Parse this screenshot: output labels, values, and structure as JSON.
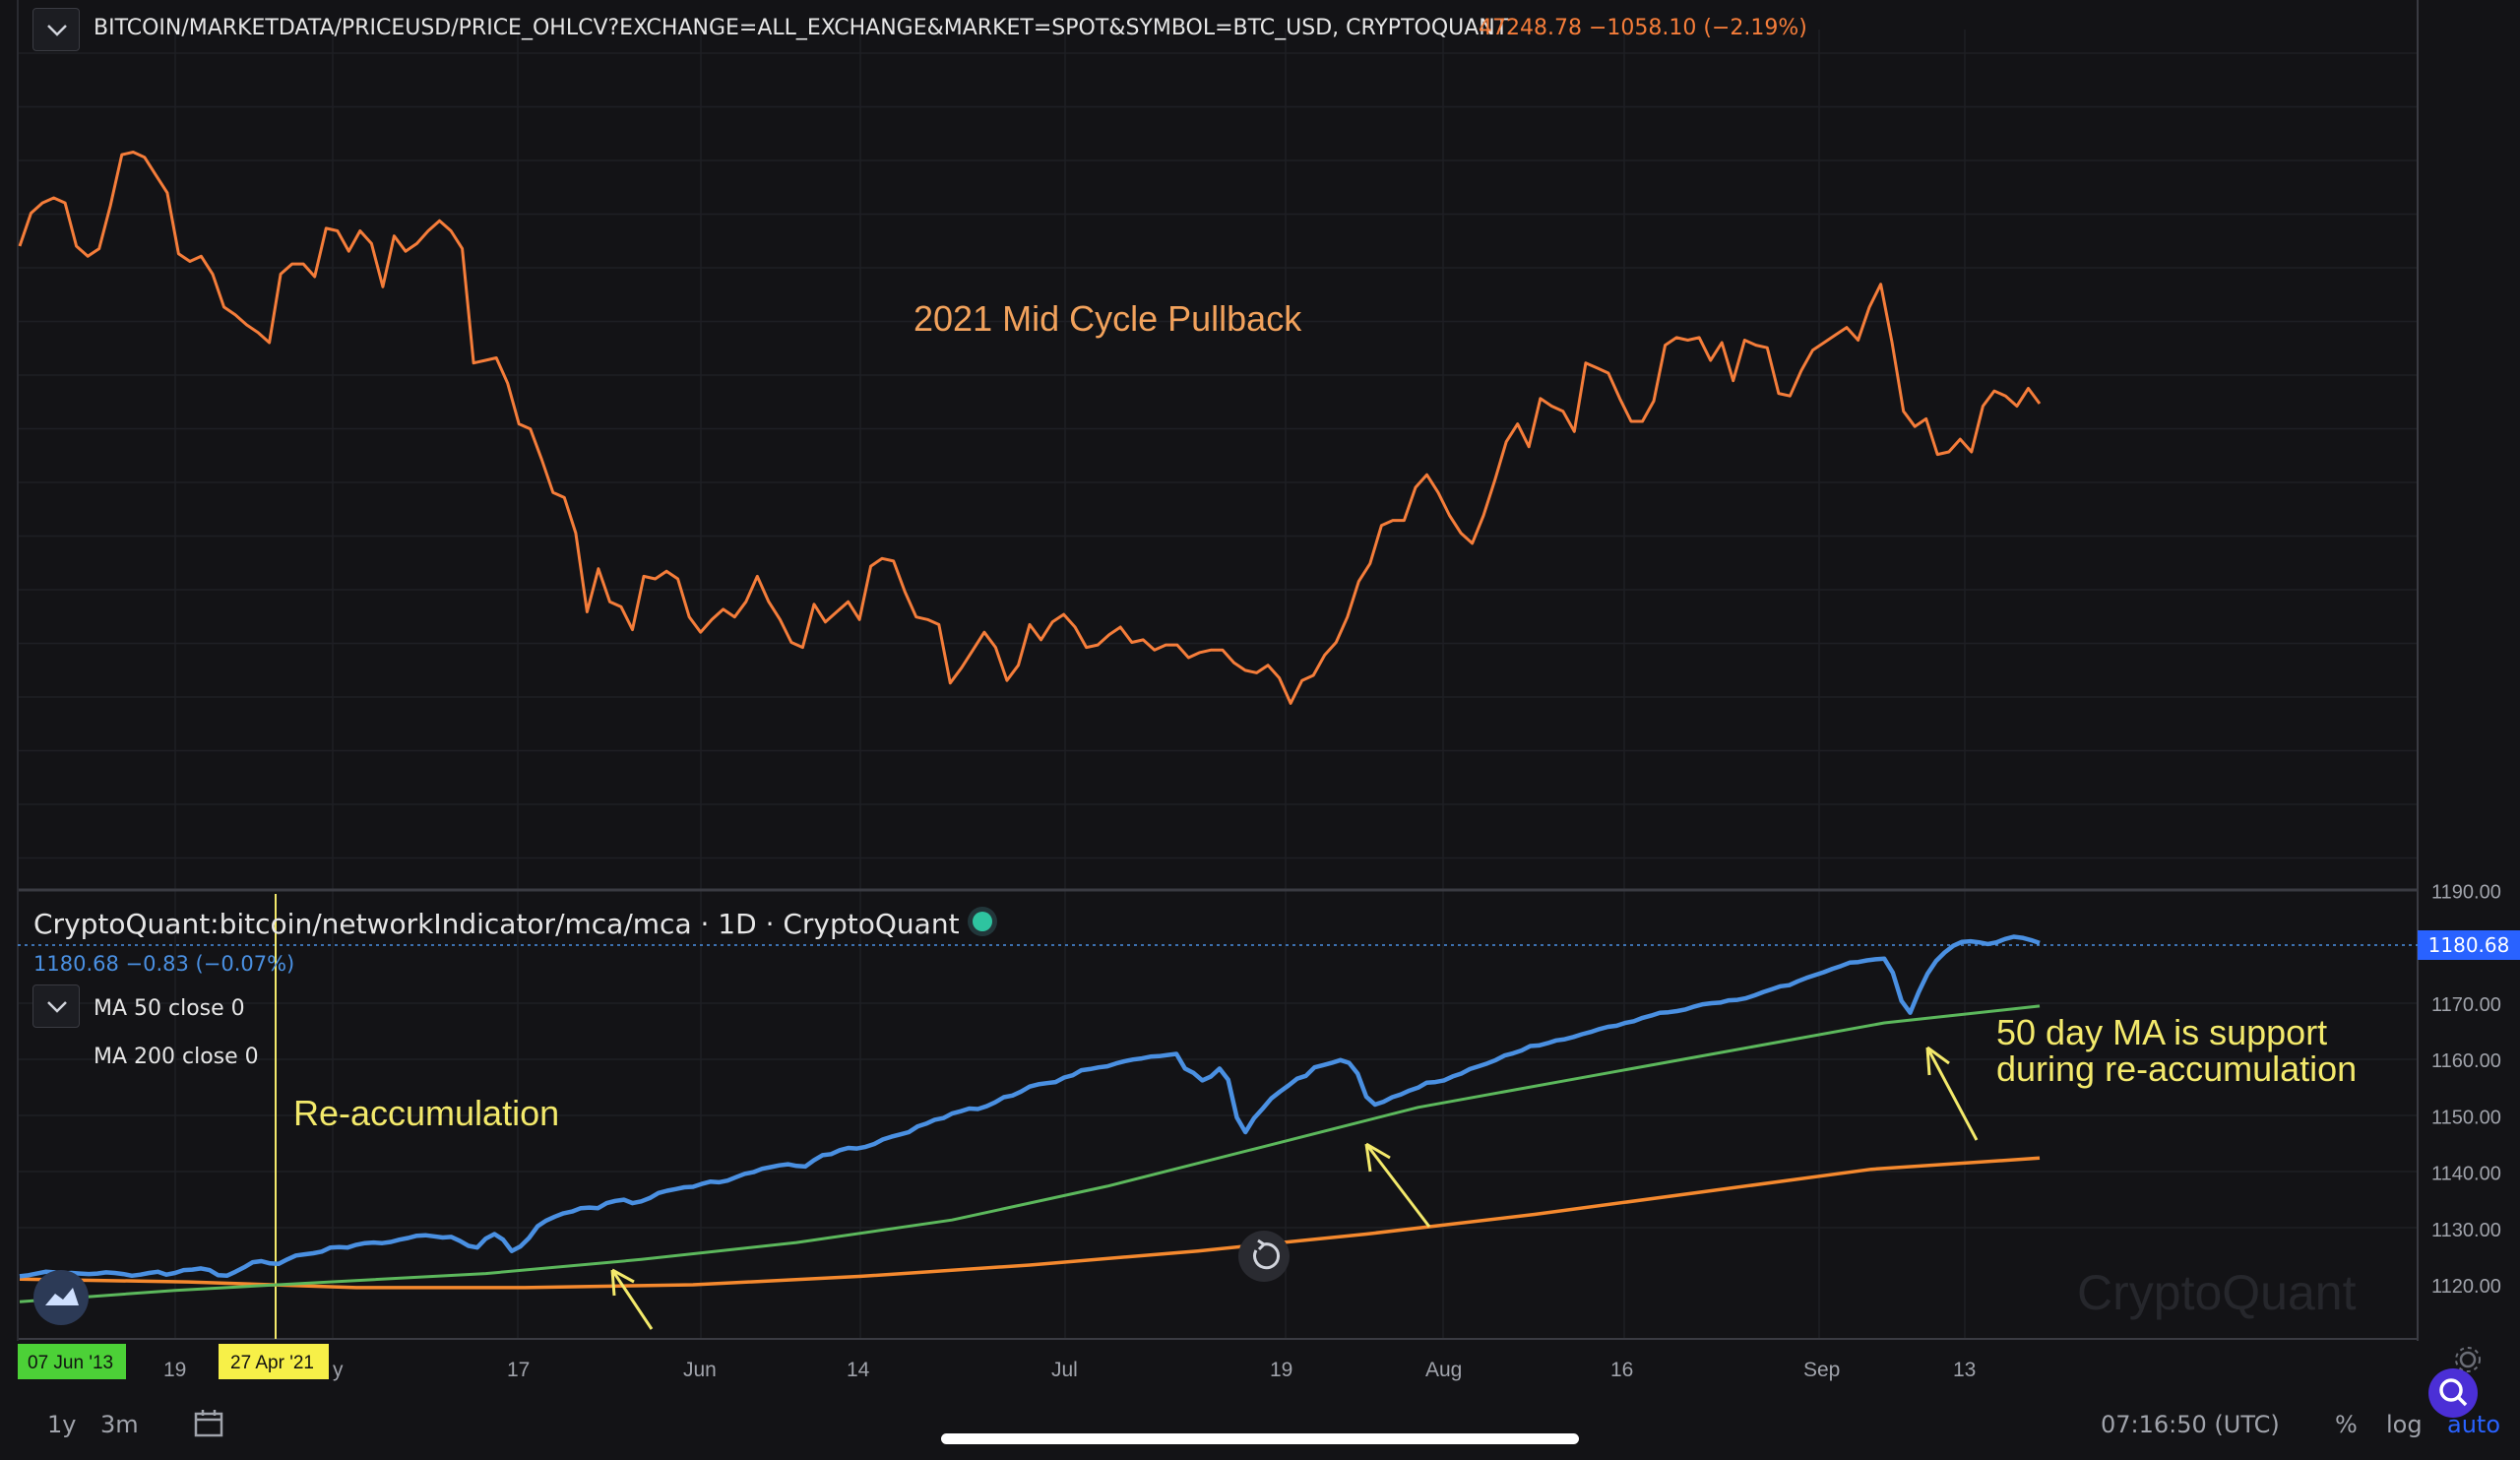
{
  "header": {
    "title": "BITCOIN/MARKETDATA/PRICEUSD/PRICE_OHLCV?EXCHANGE=ALL_EXCHANGE&MARKET=SPOT&SYMBOL=BTC_USD, CRYPTOQUANT",
    "price_text": "47248.78 −1058.10 (−2.19%)"
  },
  "indicator_pane": {
    "title": "CryptoQuant:bitcoin/networkIndicator/mca/mca · 1D · CryptoQuant",
    "value_text": "1180.68 −0.83 (−0.07%)",
    "ma50_label": "MA 50 close 0",
    "ma200_label": "MA 200 close 0",
    "last_value_badge": "1180.68",
    "watermark": "CryptoQuant"
  },
  "bottom_bar": {
    "range_1y": "1y",
    "range_3m": "3m",
    "clock": "07:16:50 (UTC)",
    "percent": "%",
    "log": "log",
    "auto": "auto"
  },
  "colors": {
    "price_line": "#f57d3a",
    "mca_line": "#4a90e2",
    "ma50_line": "#5cb85c",
    "ma200_line": "#f5892e",
    "annotation": "#f3e96b",
    "accent_blue": "#2962ff"
  },
  "chart_data": [
    {
      "type": "line",
      "title": "",
      "annotations": [
        "2021 Mid Cycle Pullback"
      ],
      "series": [
        {
          "name": "",
          "values": [
            61.0,
            62.3,
            62.7,
            62.9,
            62.7,
            61.0,
            60.6,
            60.9,
            62.6,
            64.6,
            64.7,
            64.5,
            63.8,
            63.1,
            60.7,
            60.4,
            60.6,
            59.9,
            58.6,
            58.3,
            57.9,
            57.6,
            57.2,
            59.9,
            60.3,
            60.3,
            59.8,
            61.7,
            61.6,
            60.8,
            61.6,
            61.1,
            59.4,
            61.4,
            60.8,
            61.1,
            61.6,
            62.0,
            61.6,
            60.9,
            56.4,
            56.5,
            56.6,
            55.6,
            54.0,
            53.8,
            52.6,
            51.3,
            51.1,
            49.7,
            46.6,
            48.3,
            47.0,
            46.8,
            45.9,
            48.0,
            47.9,
            48.2,
            47.9,
            46.4,
            45.8,
            46.3,
            46.7,
            46.4,
            47.0,
            48.0,
            47.0,
            46.3,
            45.4,
            45.2,
            46.9,
            46.2,
            46.6,
            47.0,
            46.3,
            48.4,
            48.7,
            48.6,
            47.4,
            46.4,
            46.3,
            46.1,
            43.8,
            44.4,
            45.1,
            45.8,
            45.2,
            43.9,
            44.5,
            46.1,
            45.5,
            46.2,
            46.5,
            46.0,
            45.2,
            45.3,
            45.7,
            46.0,
            45.4,
            45.5,
            45.1,
            45.3,
            45.3,
            44.8,
            45.0,
            45.1,
            45.1,
            44.6,
            44.3,
            44.2,
            44.5,
            44.0,
            43.0,
            43.9,
            44.1,
            44.9,
            45.4,
            46.4,
            47.8,
            48.5,
            50.0,
            50.2,
            50.2,
            51.5,
            52.0,
            51.3,
            50.4,
            49.7,
            49.3,
            50.4,
            51.8,
            53.3,
            54.0,
            53.1,
            55.0,
            54.7,
            54.5,
            53.7,
            56.4,
            56.2,
            56.0,
            55.0,
            54.1,
            54.1,
            54.9,
            57.1,
            57.4,
            57.3,
            57.4,
            56.5,
            57.2,
            55.7,
            57.3,
            57.1,
            57.0,
            55.2,
            55.1,
            56.1,
            56.9,
            57.2,
            57.5,
            57.8,
            57.3,
            58.6,
            59.5,
            57.2,
            54.5,
            53.9,
            54.2,
            52.8,
            52.9,
            53.4,
            52.9,
            54.7,
            55.3,
            55.1,
            54.7,
            55.4,
            54.8
          ]
        }
      ],
      "x_tick_labels": [
        "y",
        "17",
        "Jun",
        "14",
        "Jul",
        "19",
        "Aug",
        "16",
        "Sep",
        "13"
      ],
      "grid": true
    },
    {
      "type": "line",
      "title": "",
      "y_tick_labels": [
        "1190.00",
        "1180.68",
        "1170.00",
        "1160.00",
        "1150.00",
        "1140.00",
        "1130.00",
        "1120.00"
      ],
      "ylim": [
        1110,
        1190
      ],
      "vertical_marker": {
        "label": "27 Apr '21"
      },
      "left_marker": {
        "label": "07 Jun '13"
      },
      "x_tick_labels": [
        "19",
        "y",
        "17",
        "Jun",
        "14",
        "Jul",
        "19",
        "Aug",
        "16",
        "Sep",
        "13"
      ],
      "annotations": [
        "Re-accumulation",
        "50 day MA is support",
        "during re-accumulation"
      ],
      "series": [
        {
          "name": "MCA",
          "values": [
            1121.5,
            1121.7,
            1122.0,
            1122.3,
            1122.2,
            1122.0,
            1122.1,
            1122.0,
            1121.9,
            1122.0,
            1122.2,
            1122.1,
            1121.9,
            1121.6,
            1121.8,
            1122.1,
            1122.3,
            1121.8,
            1122.1,
            1122.6,
            1122.7,
            1122.9,
            1122.6,
            1121.7,
            1121.6,
            1122.3,
            1123.1,
            1124.0,
            1124.2,
            1123.8,
            1123.7,
            1124.5,
            1125.2,
            1125.4,
            1125.6,
            1125.9,
            1126.6,
            1126.7,
            1126.6,
            1127.1,
            1127.4,
            1127.5,
            1127.4,
            1127.6,
            1128.0,
            1128.3,
            1128.7,
            1128.8,
            1128.6,
            1128.4,
            1128.5,
            1127.8,
            1126.9,
            1126.6,
            1128.2,
            1129.0,
            1128.0,
            1126.0,
            1126.8,
            1128.3,
            1130.4,
            1131.4,
            1132.1,
            1132.7,
            1133.0,
            1133.6,
            1133.7,
            1133.6,
            1134.5,
            1134.9,
            1135.1,
            1134.5,
            1134.8,
            1135.4,
            1136.3,
            1136.7,
            1137.0,
            1137.3,
            1137.4,
            1137.9,
            1138.3,
            1138.2,
            1138.5,
            1139.1,
            1139.7,
            1140.0,
            1140.6,
            1140.9,
            1141.2,
            1141.4,
            1141.1,
            1141.0,
            1142.1,
            1143.0,
            1143.2,
            1143.9,
            1144.3,
            1144.2,
            1144.5,
            1145.0,
            1145.8,
            1146.3,
            1146.7,
            1147.1,
            1148.1,
            1148.6,
            1149.3,
            1149.6,
            1150.4,
            1150.8,
            1151.3,
            1151.2,
            1151.7,
            1152.4,
            1153.3,
            1153.6,
            1154.3,
            1155.2,
            1155.6,
            1155.8,
            1156.0,
            1156.8,
            1157.2,
            1158.1,
            1158.3,
            1158.6,
            1158.8,
            1159.3,
            1159.7,
            1160.0,
            1160.2,
            1160.5,
            1160.6,
            1160.8,
            1161.0,
            1158.4,
            1157.6,
            1156.3,
            1157.0,
            1158.4,
            1156.4,
            1149.7,
            1147.1,
            1149.6,
            1151.3,
            1153.1,
            1154.3,
            1155.4,
            1156.6,
            1157.1,
            1158.6,
            1159.0,
            1159.4,
            1159.9,
            1159.4,
            1157.5,
            1153.4,
            1152.0,
            1152.5,
            1153.3,
            1153.8,
            1154.5,
            1155.0,
            1155.9,
            1156.0,
            1156.3,
            1157.0,
            1157.5,
            1158.3,
            1158.8,
            1159.3,
            1159.9,
            1160.7,
            1161.1,
            1161.6,
            1162.4,
            1162.5,
            1162.9,
            1163.4,
            1163.6,
            1164.0,
            1164.5,
            1164.9,
            1165.4,
            1165.8,
            1166.0,
            1166.5,
            1166.8,
            1167.4,
            1167.8,
            1168.3,
            1168.4,
            1168.6,
            1168.9,
            1169.4,
            1169.8,
            1170.0,
            1170.1,
            1170.5,
            1170.6,
            1170.9,
            1171.4,
            1172.0,
            1172.5,
            1173.0,
            1173.2,
            1173.9,
            1174.5,
            1175.0,
            1175.5,
            1176.1,
            1176.6,
            1177.2,
            1177.3,
            1177.6,
            1177.8,
            1177.9,
            1175.4,
            1170.4,
            1168.3,
            1172.0,
            1175.2,
            1177.5,
            1179.0,
            1180.2,
            1180.9,
            1181.0,
            1180.8,
            1180.5,
            1180.8,
            1181.4,
            1181.8,
            1181.6,
            1181.2,
            1180.68
          ]
        },
        {
          "name": "MA 50",
          "values": [
            1117.0,
            1119.0,
            1120.5,
            1122.0,
            1124.5,
            1127.5,
            1131.5,
            1137.5,
            1144.5,
            1151.5,
            1156.5,
            1161.5,
            1166.5,
            1169.5
          ]
        },
        {
          "name": "MA 200",
          "values": [
            1121.0,
            1120.5,
            1119.5,
            1119.5,
            1120.0,
            1121.5,
            1123.5,
            1126.0,
            1129.0,
            1132.5,
            1136.5,
            1140.5,
            1142.5
          ]
        }
      ]
    }
  ]
}
